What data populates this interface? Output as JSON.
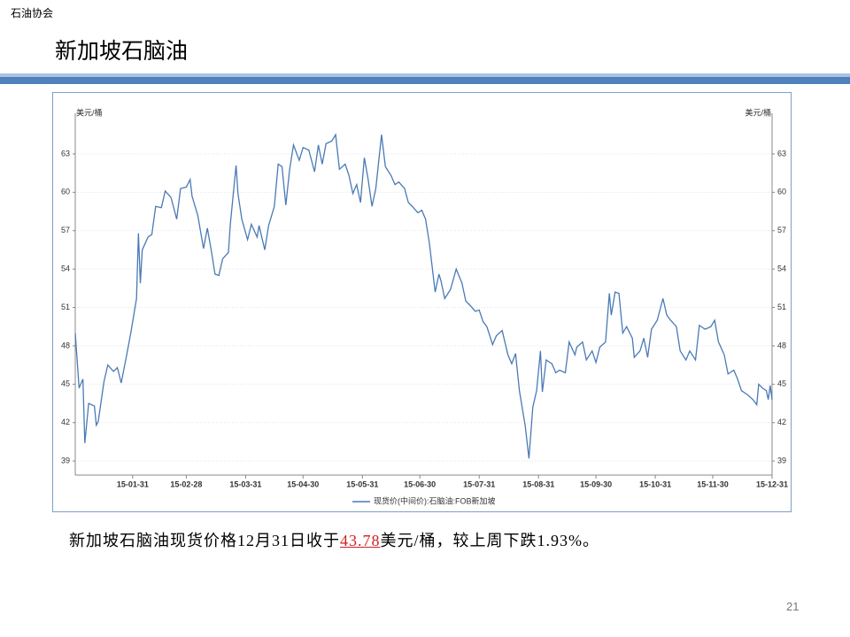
{
  "header": {
    "org": "石油协会",
    "title": "新加坡石脑油"
  },
  "chart_data": {
    "type": "line",
    "y_label": "美元/桶",
    "x": [
      "15-01-01",
      "15-01-03",
      "15-01-05",
      "15-01-06",
      "15-01-08",
      "15-01-11",
      "15-01-12",
      "15-01-13",
      "15-01-16",
      "15-01-18",
      "15-01-21",
      "15-01-23",
      "15-01-25",
      "15-01-28",
      "15-01-30",
      "15-02-02",
      "15-02-03",
      "15-02-04",
      "15-02-05",
      "15-02-08",
      "15-02-10",
      "15-02-12",
      "15-02-15",
      "15-02-17",
      "15-02-20",
      "15-02-23",
      "15-02-25",
      "15-02-28",
      "15-03-02",
      "15-03-03",
      "15-03-06",
      "15-03-09",
      "15-03-11",
      "15-03-13",
      "15-03-15",
      "15-03-17",
      "15-03-19",
      "15-03-22",
      "15-03-23",
      "15-03-26",
      "15-03-27",
      "15-03-29",
      "15-04-01",
      "15-04-03",
      "15-04-06",
      "15-04-07",
      "15-04-10",
      "15-04-12",
      "15-04-15",
      "15-04-17",
      "15-04-19",
      "15-04-21",
      "15-04-23",
      "15-04-25",
      "15-04-28",
      "15-04-30",
      "15-05-03",
      "15-05-06",
      "15-05-08",
      "15-05-10",
      "15-05-12",
      "15-05-15",
      "15-05-17",
      "15-05-19",
      "15-05-22",
      "15-05-24",
      "15-05-26",
      "15-05-28",
      "15-05-30",
      "15-06-01",
      "15-06-03",
      "15-06-05",
      "15-06-07",
      "15-06-10",
      "15-06-12",
      "15-06-15",
      "15-06-17",
      "15-06-19",
      "15-06-22",
      "15-06-24",
      "15-06-26",
      "15-06-29",
      "15-07-01",
      "15-07-03",
      "15-07-05",
      "15-07-08",
      "15-07-10",
      "15-07-11",
      "15-07-13",
      "15-07-16",
      "15-07-19",
      "15-07-22",
      "15-07-24",
      "15-07-26",
      "15-07-29",
      "15-07-31",
      "15-08-02",
      "15-08-04",
      "15-08-07",
      "15-08-09",
      "15-08-12",
      "15-08-15",
      "15-08-17",
      "15-08-19",
      "15-08-21",
      "15-08-24",
      "15-08-26",
      "15-08-28",
      "15-08-30",
      "15-09-01",
      "15-09-02",
      "15-09-04",
      "15-09-07",
      "15-09-09",
      "15-09-11",
      "15-09-14",
      "15-09-16",
      "15-09-19",
      "15-09-20",
      "15-09-23",
      "15-09-25",
      "15-09-28",
      "15-09-30",
      "15-10-02",
      "15-10-05",
      "15-10-07",
      "15-10-08",
      "15-10-10",
      "15-10-12",
      "15-10-14",
      "15-10-16",
      "15-10-19",
      "15-10-20",
      "15-10-23",
      "15-10-25",
      "15-10-27",
      "15-10-29",
      "15-11-01",
      "15-11-04",
      "15-11-06",
      "15-11-08",
      "15-11-11",
      "15-11-13",
      "15-11-16",
      "15-11-18",
      "15-11-21",
      "15-11-23",
      "15-11-26",
      "15-11-29",
      "15-12-01",
      "15-12-03",
      "15-12-06",
      "15-12-08",
      "15-12-11",
      "15-12-13",
      "15-12-15",
      "15-12-18",
      "15-12-21",
      "15-12-23",
      "15-12-24",
      "15-12-26",
      "15-12-28",
      "15-12-29",
      "15-12-30",
      "15-12-31"
    ],
    "series": [
      {
        "name": "现货价(中间价):石脑油:FOB新加坡",
        "color": "#4a7ab5",
        "values": [
          49.0,
          44.7,
          45.4,
          40.4,
          43.5,
          43.3,
          41.8,
          42.1,
          45.2,
          46.5,
          46.0,
          46.3,
          45.1,
          47.4,
          49.0,
          51.7,
          56.8,
          52.9,
          55.5,
          56.5,
          56.7,
          58.9,
          58.8,
          60.1,
          59.6,
          57.9,
          60.3,
          60.4,
          61.0,
          59.7,
          58.2,
          55.6,
          57.2,
          55.5,
          53.6,
          53.5,
          54.8,
          55.3,
          57.5,
          62.1,
          59.9,
          57.9,
          56.3,
          57.5,
          56.5,
          57.4,
          55.5,
          57.4,
          58.9,
          62.2,
          62.0,
          59.0,
          61.8,
          63.7,
          62.5,
          63.5,
          63.3,
          61.6,
          63.7,
          62.2,
          63.8,
          64.0,
          64.5,
          61.8,
          62.2,
          61.3,
          59.9,
          60.6,
          59.2,
          62.7,
          61.0,
          58.9,
          60.3,
          64.5,
          62.0,
          61.3,
          60.6,
          60.8,
          60.3,
          59.2,
          58.9,
          58.4,
          58.6,
          57.9,
          56.0,
          52.2,
          53.6,
          53.1,
          51.7,
          52.4,
          54.0,
          52.9,
          51.5,
          51.2,
          50.7,
          50.8,
          49.9,
          49.5,
          48.1,
          48.8,
          49.2,
          47.3,
          46.6,
          47.4,
          44.5,
          41.8,
          39.2,
          43.2,
          44.5,
          47.6,
          44.4,
          46.9,
          46.6,
          45.9,
          46.1,
          45.9,
          48.3,
          47.3,
          47.9,
          48.3,
          46.9,
          47.6,
          46.7,
          47.9,
          48.3,
          52.1,
          50.4,
          52.2,
          52.1,
          49.0,
          49.5,
          48.6,
          47.1,
          47.6,
          48.6,
          47.1,
          49.3,
          50.0,
          51.7,
          50.4,
          50.0,
          49.5,
          47.6,
          46.9,
          47.6,
          46.9,
          49.6,
          49.3,
          49.5,
          50.0,
          48.3,
          47.3,
          45.8,
          46.1,
          45.4,
          44.5,
          44.2,
          43.8,
          43.4,
          45.0,
          44.7,
          44.5,
          43.8,
          44.9,
          43.78
        ]
      }
    ],
    "xlim": [
      "15-01-01",
      "15-12-31"
    ],
    "xticks": [
      "15-01-31",
      "15-02-28",
      "15-03-31",
      "15-04-30",
      "15-05-31",
      "15-06-30",
      "15-07-31",
      "15-08-31",
      "15-09-30",
      "15-10-31",
      "15-11-30",
      "15-12-31"
    ],
    "ylim": [
      37.9,
      65.9
    ],
    "yticks": [
      39,
      42,
      45,
      48,
      51,
      54,
      57,
      60,
      63
    ],
    "grid": true
  },
  "caption": {
    "prefix": "新加坡石脑油现货价格12月31日收于",
    "highlight": "43.78",
    "suffix": "美元/桶，较上周下跌1.93%。"
  },
  "page_number": "21"
}
